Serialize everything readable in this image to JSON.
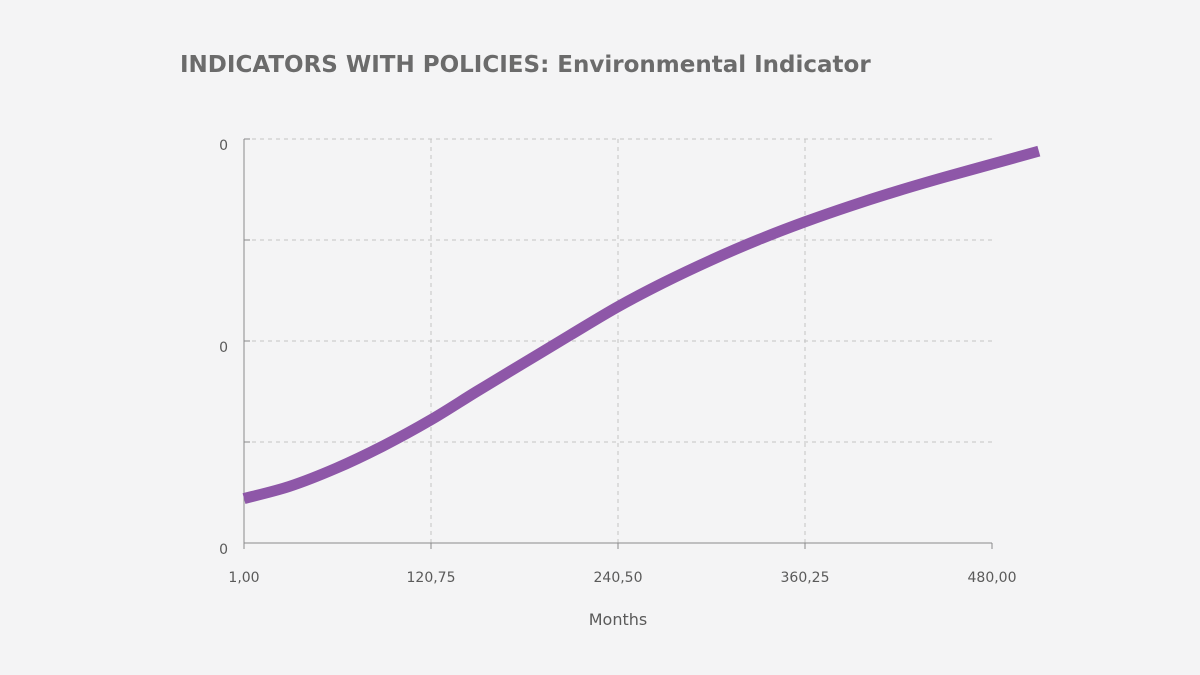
{
  "chart_data": {
    "type": "line",
    "title": "INDICATORS WITH POLICIES: Environmental Indicator",
    "xlabel": "Months",
    "ylabel": "",
    "x_ticks": [
      "1,00",
      "120,75",
      "240,50",
      "360,25",
      "480,00"
    ],
    "x_tick_values": [
      1,
      120.75,
      240.5,
      360.25,
      480
    ],
    "y_ticks": [
      "0",
      "0",
      "0"
    ],
    "xlim": [
      1,
      480
    ],
    "ylim": [
      0,
      1
    ],
    "grid": true,
    "series": [
      {
        "name": "Environmental Indicator",
        "color": "#8e57a8",
        "x": [
          1,
          30,
          60,
          90,
          120.75,
          150,
          180,
          210,
          240.5,
          270,
          300,
          330,
          360.25,
          390,
          420,
          450,
          480,
          510
        ],
        "y": [
          0.11,
          0.14,
          0.185,
          0.24,
          0.305,
          0.375,
          0.445,
          0.515,
          0.585,
          0.645,
          0.7,
          0.75,
          0.795,
          0.835,
          0.872,
          0.906,
          0.938,
          0.97
        ]
      }
    ]
  }
}
